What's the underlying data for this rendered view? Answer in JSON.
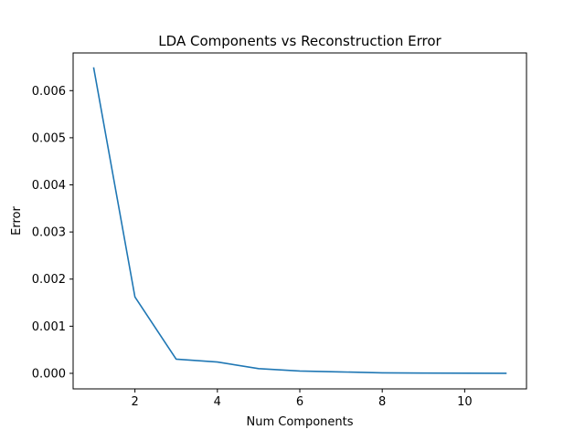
{
  "chart_data": {
    "type": "line",
    "title": "LDA Components vs Reconstruction Error",
    "xlabel": "Num Components",
    "ylabel": "Error",
    "xlim": [
      0.5,
      11.5
    ],
    "ylim": [
      -0.00033,
      0.0068
    ],
    "x_ticks": [
      2,
      4,
      6,
      8,
      10
    ],
    "y_ticks": [
      0.0,
      0.001,
      0.002,
      0.003,
      0.004,
      0.005,
      0.006
    ],
    "y_tick_labels": [
      "0.000",
      "0.001",
      "0.002",
      "0.003",
      "0.004",
      "0.005",
      "0.006"
    ],
    "grid": false,
    "series": [
      {
        "color": "#1f77b4",
        "x": [
          1,
          2,
          3,
          4,
          5,
          6,
          7,
          8,
          9,
          10,
          11
        ],
        "y": [
          0.00648,
          0.00162,
          0.0003,
          0.00024,
          0.0001,
          5e-05,
          3e-05,
          1e-05,
          5e-06,
          3e-06,
          0.0
        ]
      }
    ]
  }
}
